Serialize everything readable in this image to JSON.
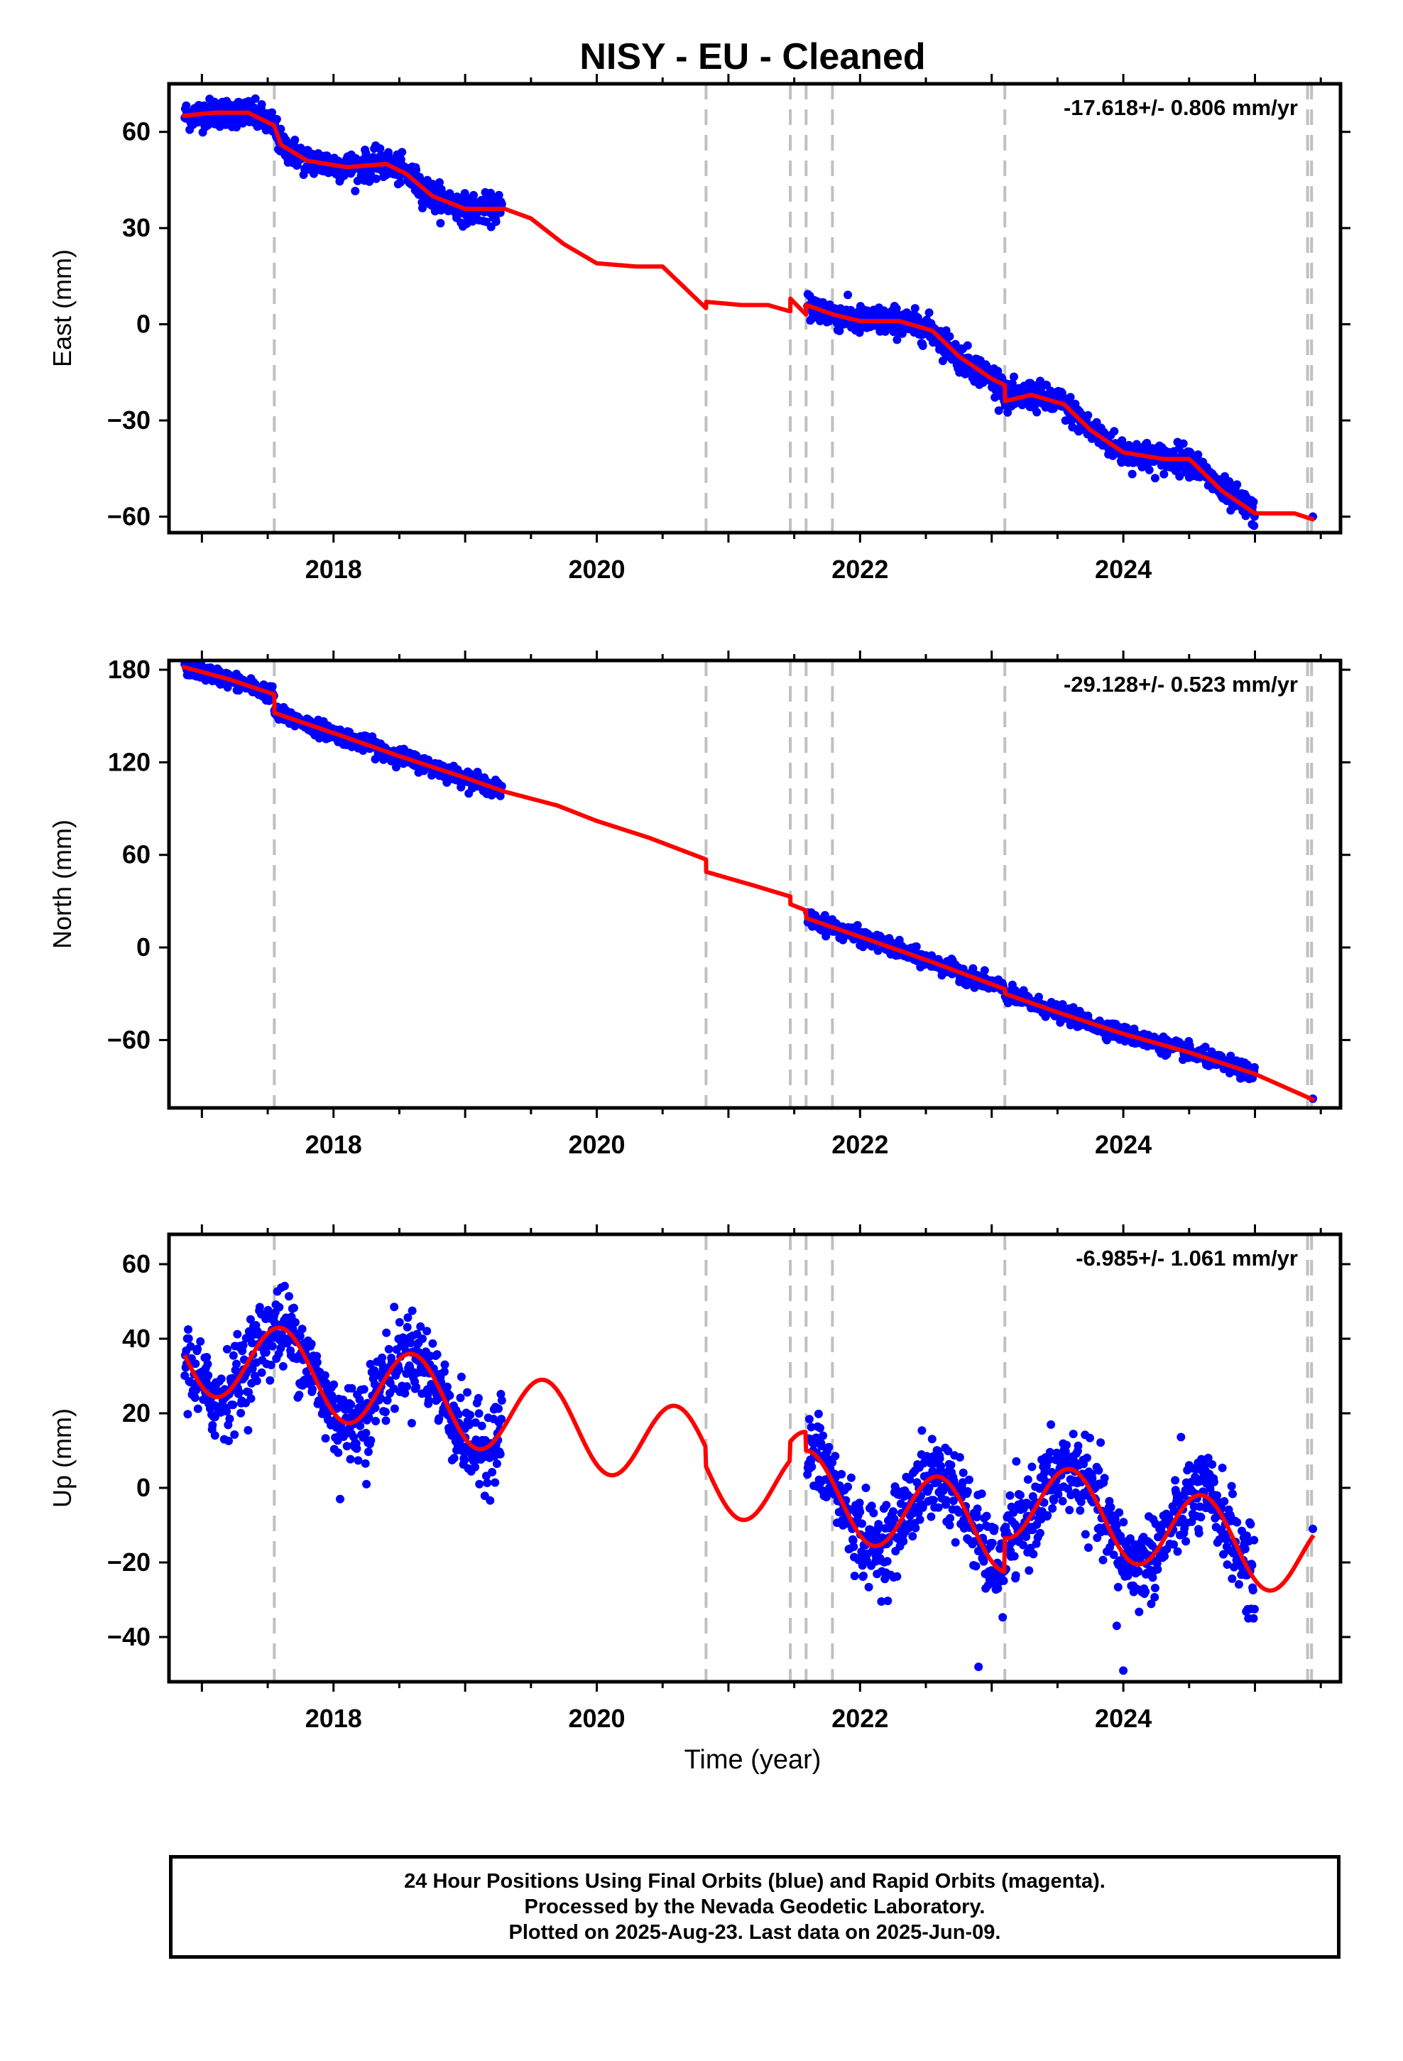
{
  "title": "NISY  - EU - Cleaned",
  "xaxis_label": "Time (year)",
  "colors": {
    "data_points": "#0000ff",
    "model_line": "#ff0000",
    "event_lines": "#c0c0c0",
    "frame": "#000000"
  },
  "footer": {
    "line1": "24 Hour Positions Using Final Orbits (blue) and Rapid Orbits (magenta).",
    "line2": "Processed by the Nevada Geodetic Laboratory.",
    "line3": "Plotted on 2025-Aug-23. Last data on 2025-Jun-09."
  },
  "chart_data": [
    {
      "type": "scatter",
      "component": "east",
      "ylabel": "East (mm)",
      "rate_label": "-17.618+/- 0.806 mm/yr",
      "xlim": [
        2016.75,
        2025.65
      ],
      "ylim": [
        -65,
        75
      ],
      "xticks": [
        2018,
        2020,
        2022,
        2024
      ],
      "yticks": [
        -60,
        -30,
        0,
        30,
        60
      ],
      "event_lines": [
        2017.55,
        2020.83,
        2021.47,
        2021.59,
        2021.79,
        2023.1,
        2025.4,
        2025.43
      ],
      "model": {
        "x": [
          2016.85,
          2017.1,
          2017.35,
          2017.55,
          2017.6,
          2017.8,
          2018.1,
          2018.4,
          2018.55,
          2018.75,
          2019.0,
          2019.3,
          2019.5,
          2019.75,
          2020.0,
          2020.3,
          2020.5,
          2020.83,
          2020.831,
          2021.1,
          2021.3,
          2021.47,
          2021.471,
          2021.59,
          2021.591,
          2021.8,
          2022.0,
          2022.3,
          2022.55,
          2022.75,
          2023.0,
          2023.1,
          2023.101,
          2023.3,
          2023.55,
          2023.75,
          2024.0,
          2024.3,
          2024.5,
          2024.75,
          2025.0,
          2025.3,
          2025.45
        ],
        "y": [
          65,
          66,
          66,
          62,
          56,
          51,
          49,
          50,
          47,
          40,
          36,
          36,
          33,
          25,
          19,
          18,
          18,
          5,
          7,
          6,
          6,
          4,
          8,
          3,
          6,
          3,
          1,
          1,
          -2,
          -10,
          -17,
          -19,
          -24,
          -22,
          -25,
          -33,
          -40,
          -42,
          -42,
          -52,
          -59,
          -59,
          -61
        ]
      },
      "series": [
        {
          "name": "Final Orbits",
          "segments": [
            [
              2016.87,
              2019.28
            ],
            [
              2021.6,
              2025.0
            ]
          ],
          "scatter_mm": 2.2
        }
      ],
      "last_point": {
        "x": 2025.44,
        "y": -60
      }
    },
    {
      "type": "scatter",
      "component": "north",
      "ylabel": "North (mm)",
      "rate_label": "-29.128+/- 0.523 mm/yr",
      "xlim": [
        2016.75,
        2025.65
      ],
      "ylim": [
        -104,
        186
      ],
      "xticks": [
        2018,
        2020,
        2022,
        2024
      ],
      "yticks": [
        -60,
        0,
        60,
        120,
        180
      ],
      "event_lines": [
        2017.55,
        2020.83,
        2021.47,
        2021.59,
        2021.79,
        2023.1,
        2025.4,
        2025.43
      ],
      "model": {
        "x": [
          2016.85,
          2017.2,
          2017.55,
          2017.551,
          2018.0,
          2018.5,
          2019.0,
          2019.3,
          2019.7,
          2020.0,
          2020.4,
          2020.83,
          2020.831,
          2021.2,
          2021.47,
          2021.471,
          2021.59,
          2021.591,
          2022.0,
          2022.5,
          2023.1,
          2023.101,
          2023.5,
          2024.0,
          2024.5,
          2025.0,
          2025.45
        ],
        "y": [
          182,
          174,
          164,
          152,
          139,
          124,
          110,
          101,
          92,
          82,
          71,
          57,
          49,
          40,
          33,
          28,
          24,
          19,
          7,
          -8,
          -27,
          -30,
          -42,
          -56,
          -68,
          -82,
          -99
        ]
      },
      "series": [
        {
          "name": "Final Orbits",
          "segments": [
            [
              2016.87,
              2019.28
            ],
            [
              2021.6,
              2025.0
            ]
          ],
          "scatter_mm": 2.5
        }
      ],
      "last_point": {
        "x": 2025.44,
        "y": -98
      }
    },
    {
      "type": "scatter",
      "component": "up",
      "ylabel": "Up (mm)",
      "rate_label": "-6.985+/- 1.061 mm/yr",
      "xlim": [
        2016.75,
        2025.65
      ],
      "ylim": [
        -52,
        68
      ],
      "xticks": [
        2018,
        2020,
        2022,
        2024
      ],
      "yticks": [
        -40,
        -20,
        0,
        20,
        40,
        60
      ],
      "event_lines": [
        2017.55,
        2020.83,
        2021.47,
        2021.59,
        2021.79,
        2023.1,
        2025.4,
        2025.43
      ],
      "model_params": {
        "start": 2016.87,
        "end": 2025.45,
        "ref_year": 2016.87,
        "intercept": 37,
        "rate": -6.985,
        "annual_amp": 11,
        "annual_peak": 0.6
      },
      "model_steps": [
        {
          "x": 2020.83,
          "dy": -5
        },
        {
          "x": 2021.47,
          "dy": 5
        },
        {
          "x": 2021.59,
          "dy": -5
        },
        {
          "x": 2023.1,
          "dy": 9
        }
      ],
      "series": [
        {
          "name": "Final Orbits",
          "segments": [
            [
              2016.87,
              2019.28
            ],
            [
              2021.6,
              2025.0
            ]
          ],
          "scatter_mm": 5.5
        }
      ],
      "outliers": [
        {
          "x": 2018.05,
          "y": -3
        },
        {
          "x": 2018.25,
          "y": 1
        },
        {
          "x": 2022.9,
          "y": -48
        },
        {
          "x": 2024.0,
          "y": -49
        },
        {
          "x": 2023.95,
          "y": -37
        },
        {
          "x": 2017.1,
          "y": 19
        },
        {
          "x": 2024.95,
          "y": -35
        }
      ],
      "last_point": {
        "x": 2025.44,
        "y": -11
      }
    }
  ]
}
